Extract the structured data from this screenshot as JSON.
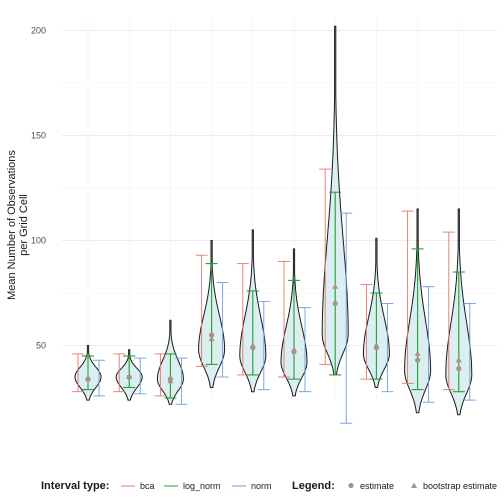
{
  "chart_data": {
    "type": "violin",
    "title": "",
    "xlabel": "",
    "ylabel_lines": [
      "Mean Number of Observations",
      "per Grid Cell"
    ],
    "ylim": [
      20,
      202
    ],
    "yticks": [
      50,
      100,
      150,
      200
    ],
    "ytick_labels": [
      "50",
      "100",
      "150",
      "200"
    ],
    "grid": true,
    "colors": {
      "bca": "#E8756D",
      "log_norm": "#1E9E3A",
      "norm": "#6E9CE0",
      "violin_fill": "#DCEFF0",
      "violin_outline": "#1a1a1a",
      "point": "#A99090"
    },
    "groups": [
      {
        "min": 24,
        "max": 50,
        "median": 35,
        "bca": [
          28,
          46
        ],
        "log_norm": [
          29,
          45
        ],
        "norm": [
          26,
          43
        ],
        "estimate": 34,
        "bootstrap_estimate": 34
      },
      {
        "min": 24,
        "max": 48,
        "median": 35,
        "bca": [
          28,
          46
        ],
        "log_norm": [
          30,
          45
        ],
        "norm": [
          27,
          44
        ],
        "estimate": 35,
        "bootstrap_estimate": 35
      },
      {
        "min": 22,
        "max": 62,
        "median": 34,
        "bca": [
          26,
          46
        ],
        "log_norm": [
          25,
          46
        ],
        "norm": [
          22,
          44
        ],
        "estimate": 34,
        "bootstrap_estimate": 33
      },
      {
        "min": 30,
        "max": 100,
        "median": 48,
        "bca": [
          40,
          93
        ],
        "log_norm": [
          41,
          89
        ],
        "norm": [
          35,
          80
        ],
        "estimate": 55,
        "bootstrap_estimate": 53
      },
      {
        "min": 28,
        "max": 105,
        "median": 45,
        "bca": [
          36,
          89
        ],
        "log_norm": [
          36,
          76
        ],
        "norm": [
          29,
          71
        ],
        "estimate": 49,
        "bootstrap_estimate": 50
      },
      {
        "min": 26,
        "max": 96,
        "median": 42,
        "bca": [
          35,
          90
        ],
        "log_norm": [
          34,
          81
        ],
        "norm": [
          28,
          68
        ],
        "estimate": 47,
        "bootstrap_estimate": 48
      },
      {
        "min": 36,
        "max": 202,
        "median": 55,
        "bca": [
          41,
          134
        ],
        "log_norm": [
          36,
          123
        ],
        "norm": [
          13,
          113
        ],
        "estimate": 70,
        "bootstrap_estimate": 78
      },
      {
        "min": 30,
        "max": 101,
        "median": 46,
        "bca": [
          34,
          79
        ],
        "log_norm": [
          34,
          75
        ],
        "norm": [
          28,
          70
        ],
        "estimate": 49,
        "bootstrap_estimate": 50
      },
      {
        "min": 18,
        "max": 115,
        "median": 38,
        "bca": [
          32,
          114
        ],
        "log_norm": [
          29,
          96
        ],
        "norm": [
          23,
          78
        ],
        "estimate": 43,
        "bootstrap_estimate": 46
      },
      {
        "min": 17,
        "max": 115,
        "median": 36,
        "bca": [
          29,
          104
        ],
        "log_norm": [
          28,
          85
        ],
        "norm": [
          24,
          70
        ],
        "estimate": 39,
        "bootstrap_estimate": 43
      }
    ],
    "legend": {
      "position": "bottom",
      "interval_title": "Interval type:",
      "interval_items": [
        {
          "key": "bca",
          "label": "bca"
        },
        {
          "key": "log_norm",
          "label": "log_norm"
        },
        {
          "key": "norm",
          "label": "norm"
        }
      ],
      "marker_title": "Legend:",
      "marker_items": [
        {
          "shape": "circle",
          "label": "estimate"
        },
        {
          "shape": "triangle",
          "label": "bootstrap estimate"
        }
      ]
    }
  }
}
